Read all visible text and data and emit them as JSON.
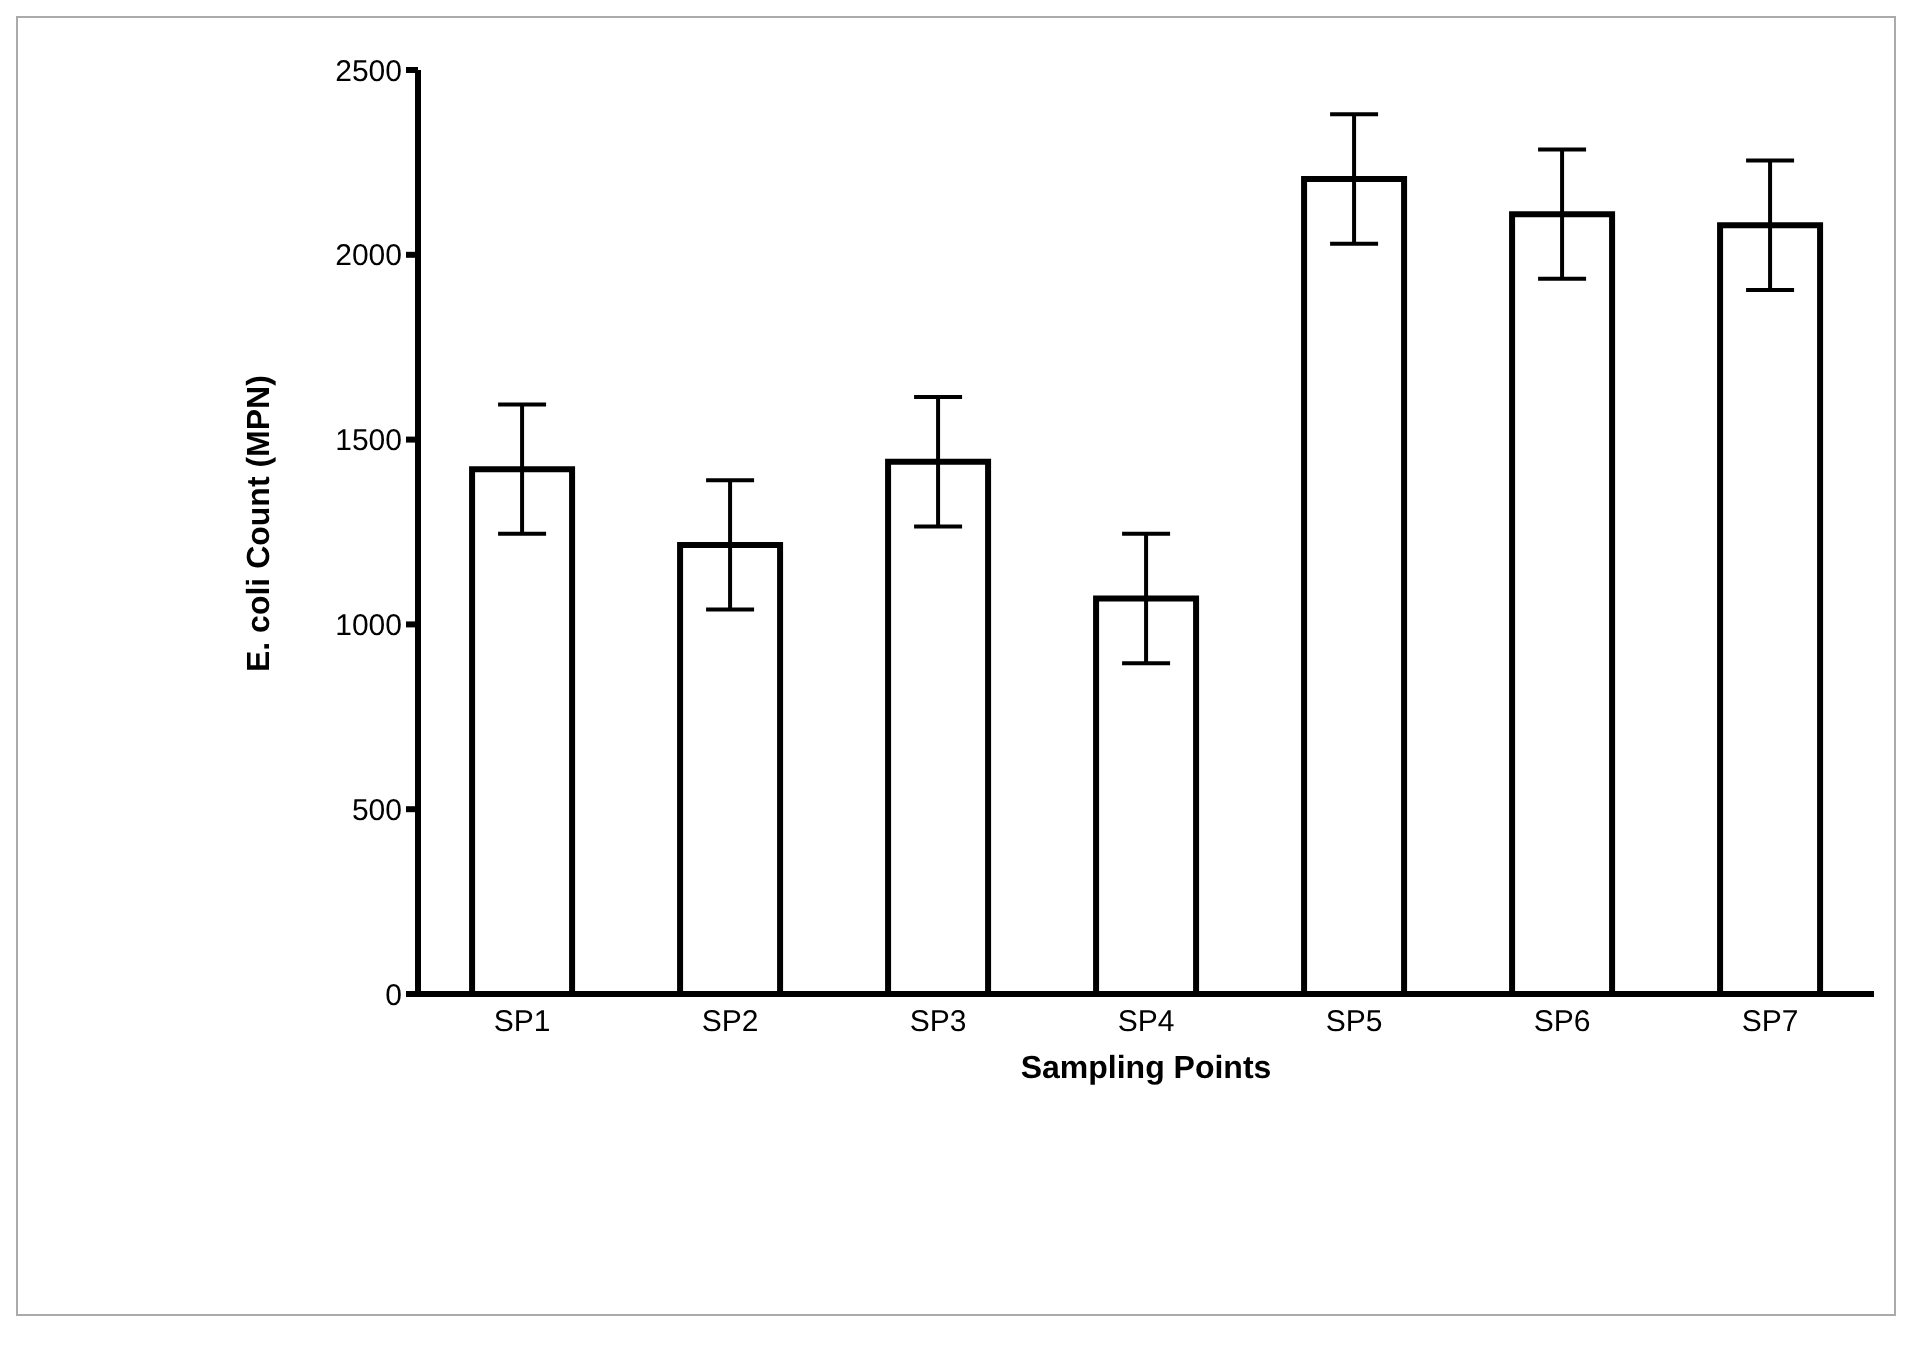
{
  "chart_data": {
    "type": "bar",
    "xlabel": "Sampling Points",
    "ylabel": "E. coli Count (MPN)",
    "categories": [
      "SP1",
      "SP2",
      "SP3",
      "SP4",
      "SP5",
      "SP6",
      "SP7"
    ],
    "values": [
      1420,
      1215,
      1440,
      1070,
      2205,
      2110,
      2080
    ],
    "errors": [
      175,
      175,
      175,
      175,
      175,
      175,
      175
    ],
    "color": "#ffffff",
    "ylim": [
      0,
      2500
    ],
    "yticks": [
      0,
      500,
      1000,
      1500,
      2000,
      2500
    ],
    "grid": false,
    "legend": false
  }
}
